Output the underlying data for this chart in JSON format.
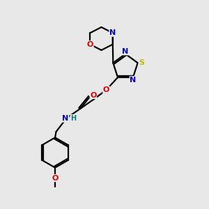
{
  "bg_color": "#e8e8e8",
  "bond_color": "#000000",
  "atom_colors": {
    "N": "#0000cc",
    "O": "#dd0000",
    "S": "#bbbb00",
    "C": "#000000",
    "H": "#008080"
  },
  "lw": 1.6
}
